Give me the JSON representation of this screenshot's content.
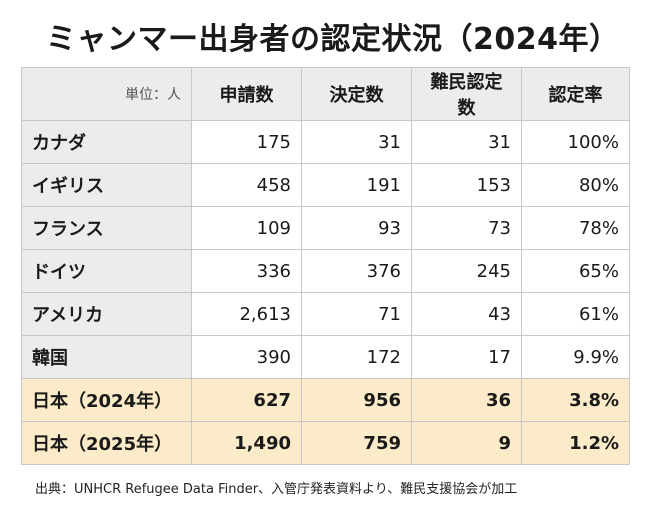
{
  "title": "ミャンマー出身者の認定状況（2024年）",
  "table": {
    "unit_label": "単位：人",
    "columns": [
      "申請数",
      "決定数",
      "難民認定数",
      "認定率"
    ],
    "rows": [
      {
        "country": "カナダ",
        "applications": "175",
        "decisions": "31",
        "recognized": "31",
        "rate": "100%"
      },
      {
        "country": "イギリス",
        "applications": "458",
        "decisions": "191",
        "recognized": "153",
        "rate": "80%"
      },
      {
        "country": "フランス",
        "applications": "109",
        "decisions": "93",
        "recognized": "73",
        "rate": "78%"
      },
      {
        "country": "ドイツ",
        "applications": "336",
        "decisions": "376",
        "recognized": "245",
        "rate": "65%"
      },
      {
        "country": "アメリカ",
        "applications": "2,613",
        "decisions": "71",
        "recognized": "43",
        "rate": "61%"
      },
      {
        "country": "韓国",
        "applications": "390",
        "decisions": "172",
        "recognized": "17",
        "rate": "9.9%"
      },
      {
        "country": "日本（2024年）",
        "applications": "627",
        "decisions": "956",
        "recognized": "36",
        "rate": "3.8%"
      },
      {
        "country": "日本（2025年）",
        "applications": "1,490",
        "decisions": "759",
        "recognized": "9",
        "rate": "1.2%"
      }
    ]
  },
  "source": "出典：UNHCR Refugee Data Finder、入管庁発表資料より、難民支援協会が加工",
  "colors": {
    "header_bg": "#ececec",
    "highlight_bg": "#fcebc8",
    "border": "#c8c8c8"
  }
}
